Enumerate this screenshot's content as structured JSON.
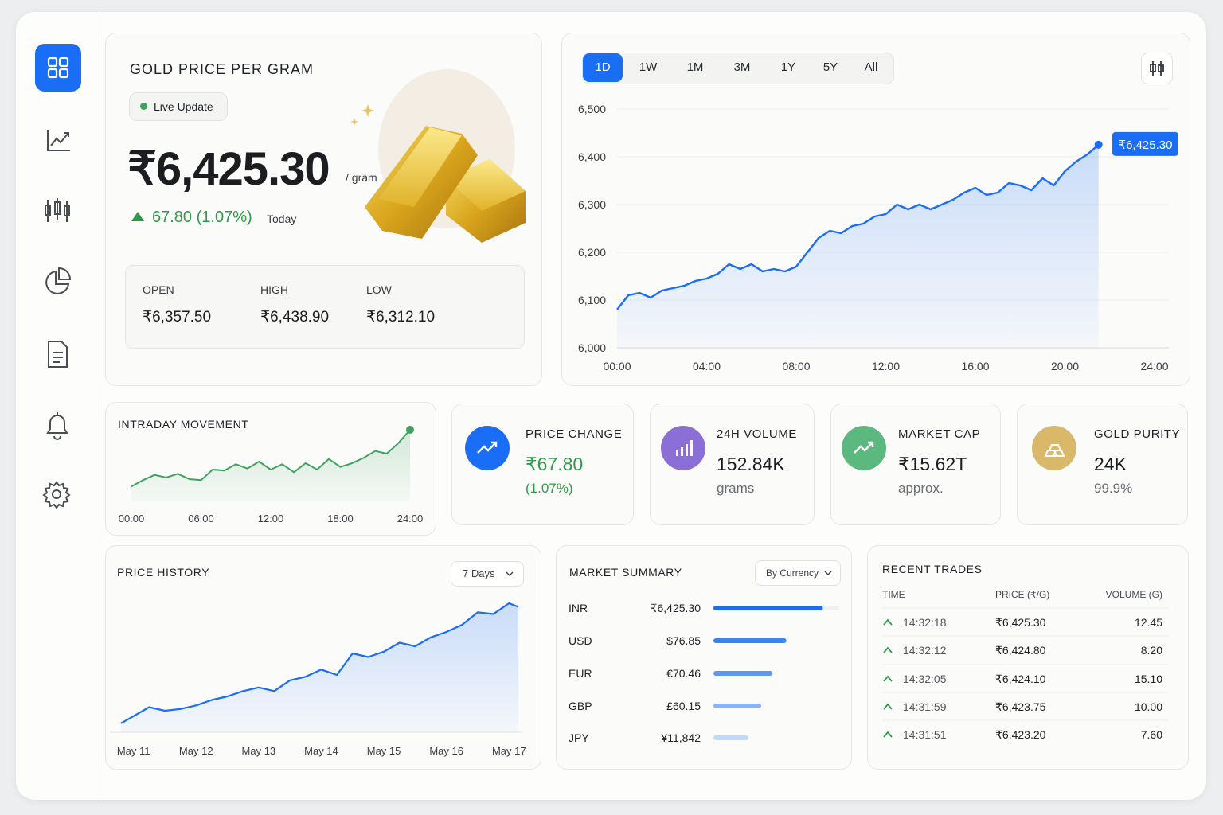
{
  "price_card": {
    "title": "GOLD PRICE PER GRAM",
    "status": "Live Update",
    "price": "₹6,425.30",
    "unit": "/ gram",
    "change": "67.80 (1.07%)",
    "period": "Today",
    "open_label": "OPEN",
    "open": "₹6,357.50",
    "high_label": "HIGH",
    "high": "₹6,438.90",
    "low_label": "LOW",
    "low": "₹6,312.10"
  },
  "range_tabs": [
    "1D",
    "1W",
    "1M",
    "3M",
    "1Y",
    "5Y",
    "All"
  ],
  "stats": [
    {
      "title": "PRICE CHANGE",
      "value": "₹67.80",
      "sub": "(1.07%)"
    },
    {
      "title": "24H VOLUME",
      "value": "152.84K",
      "sub": "grams"
    },
    {
      "title": "MARKET CAP",
      "value": "₹15.62T",
      "sub": "approx."
    },
    {
      "title": "GOLD PURITY",
      "value": "24K",
      "sub": "99.9%"
    }
  ],
  "market_summary": {
    "title": "MARKET SUMMARY",
    "filter": "By Currency",
    "rows": [
      {
        "currency": "INR",
        "price": "₹6,425.30",
        "share": 87
      },
      {
        "currency": "USD",
        "price": "$76.85",
        "share": 58
      },
      {
        "currency": "EUR",
        "price": "€70.46",
        "share": 47
      },
      {
        "currency": "GBP",
        "price": "£60.15",
        "share": 38
      },
      {
        "currency": "JPY",
        "price": "¥11,842",
        "share": 28
      }
    ]
  },
  "recent_trades": {
    "title": "RECENT TRADES",
    "columns": [
      "TIME",
      "PRICE (₹/G)",
      "VOLUME (G)"
    ],
    "rows": [
      [
        "14:32:18",
        "₹6,425.30",
        "12.45"
      ],
      [
        "14:32:12",
        "₹6,424.80",
        "8.20"
      ],
      [
        "14:32:05",
        "₹6,424.10",
        "15.10"
      ],
      [
        "14:31:59",
        "₹6,423.75",
        "10.00"
      ],
      [
        "14:31:51",
        "₹6,423.20",
        "7.60"
      ]
    ]
  },
  "chart_data": [
    {
      "type": "line",
      "x": [
        0,
        0.5,
        1,
        1.5,
        2,
        2.5,
        3,
        3.5,
        4,
        4.5,
        5,
        5.5,
        6,
        6.5,
        7,
        7.5,
        8,
        8.5,
        9,
        9.5,
        10,
        10.5,
        11,
        11.5,
        12,
        12.5,
        13,
        13.5,
        14,
        14.5,
        15,
        15.5,
        16,
        16.5,
        17,
        17.5,
        18,
        18.5,
        19,
        19.5,
        20,
        20.5,
        21,
        21.5
      ],
      "series": [
        {
          "color": "#1a6ef5",
          "values": [
            6080,
            6110,
            6115,
            6105,
            6120,
            6125,
            6130,
            6140,
            6145,
            6155,
            6175,
            6165,
            6175,
            6160,
            6165,
            6160,
            6170,
            6200,
            6230,
            6245,
            6240,
            6255,
            6260,
            6275,
            6280,
            6300,
            6290,
            6300,
            6290,
            6300,
            6310,
            6325,
            6335,
            6320,
            6325,
            6345,
            6340,
            6330,
            6355,
            6340,
            6370,
            6390,
            6405,
            6425.3
          ]
        }
      ],
      "xlim": [
        0,
        24
      ],
      "xticks": [
        {
          "value": 0,
          "label": "00:00"
        },
        {
          "value": 4,
          "label": "04:00"
        },
        {
          "value": 8,
          "label": "08:00"
        },
        {
          "value": 12,
          "label": "12:00"
        },
        {
          "value": 16,
          "label": "16:00"
        },
        {
          "value": 20,
          "label": "20:00"
        },
        {
          "value": 24,
          "label": "24:00"
        }
      ],
      "ylim": [
        6000,
        6500
      ],
      "yticks": [
        {
          "value": 6000,
          "label": "6,000"
        },
        {
          "value": 6100,
          "label": "6,100"
        },
        {
          "value": 6200,
          "label": "6,200"
        },
        {
          "value": 6300,
          "label": "6,300"
        },
        {
          "value": 6400,
          "label": "6,400"
        },
        {
          "value": 6500,
          "label": "6,500"
        }
      ],
      "grid": true,
      "end_label": "₹6,425.30"
    },
    {
      "type": "line",
      "title": "INTRADAY MOVEMENT",
      "x": [
        0,
        1,
        2,
        3,
        4,
        5,
        6,
        7,
        8,
        9,
        10,
        11,
        12,
        13,
        14,
        15,
        16,
        17,
        18,
        19,
        20,
        21,
        22,
        23,
        24
      ],
      "series": [
        {
          "color": "#3fa35f",
          "values": [
            6318,
            6330,
            6340,
            6335,
            6342,
            6332,
            6330,
            6350,
            6348,
            6360,
            6352,
            6365,
            6350,
            6360,
            6345,
            6362,
            6350,
            6370,
            6355,
            6362,
            6372,
            6385,
            6380,
            6400,
            6425
          ]
        }
      ],
      "xlim": [
        0,
        24
      ],
      "xticks": [
        {
          "value": 0,
          "label": "00:00"
        },
        {
          "value": 6,
          "label": "06:00"
        },
        {
          "value": 12,
          "label": "12:00"
        },
        {
          "value": 18,
          "label": "18:00"
        },
        {
          "value": 24,
          "label": "24:00"
        }
      ],
      "ylim": [
        6290,
        6440
      ]
    },
    {
      "type": "line",
      "title": "PRICE HISTORY",
      "filter": "7 Days",
      "x": [
        10.8,
        11,
        11.25,
        11.5,
        11.75,
        12,
        12.25,
        12.5,
        12.75,
        13,
        13.25,
        13.5,
        13.75,
        14,
        14.25,
        14.5,
        14.75,
        15,
        15.25,
        15.5,
        15.75,
        16,
        16.25,
        16.5,
        16.75,
        17,
        17.15
      ],
      "series": [
        {
          "color": "#1a6ef5",
          "values": [
            6075,
            6095,
            6120,
            6110,
            6115,
            6125,
            6140,
            6150,
            6165,
            6175,
            6165,
            6195,
            6205,
            6225,
            6210,
            6270,
            6260,
            6275,
            6300,
            6290,
            6315,
            6330,
            6350,
            6385,
            6380,
            6410,
            6400
          ]
        }
      ],
      "xlim": [
        10.75,
        17.2
      ],
      "xticks": [
        {
          "value": 11,
          "label": "May 11"
        },
        {
          "value": 12,
          "label": "May 12"
        },
        {
          "value": 13,
          "label": "May 13"
        },
        {
          "value": 14,
          "label": "May 14"
        },
        {
          "value": 15,
          "label": "May 15"
        },
        {
          "value": 16,
          "label": "May 16"
        },
        {
          "value": 17,
          "label": "May 17"
        }
      ],
      "ylim": [
        6050,
        6450
      ]
    }
  ]
}
